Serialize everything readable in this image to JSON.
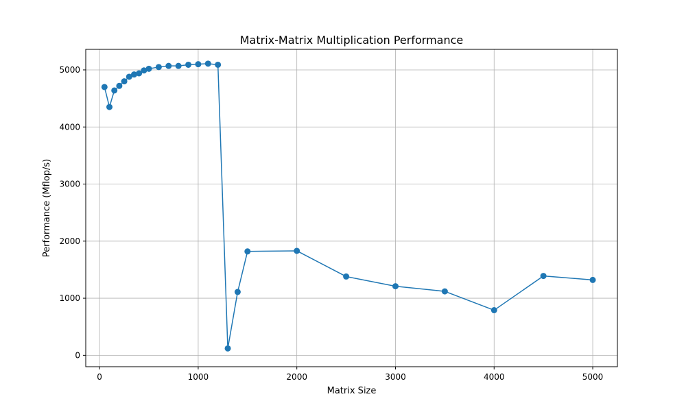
{
  "chart_data": {
    "type": "line",
    "title": "Matrix-Matrix Multiplication Performance",
    "xlabel": "Matrix Size",
    "ylabel": "Performance (Mflop/s)",
    "xlim": [
      -140,
      5250
    ],
    "ylim": [
      -200,
      5360
    ],
    "x_ticks": [
      0,
      1000,
      2000,
      3000,
      4000,
      5000
    ],
    "y_ticks": [
      0,
      1000,
      2000,
      3000,
      4000,
      5000
    ],
    "grid": true,
    "marker": "circle",
    "series": [
      {
        "color": "#1f77b4",
        "x": [
          50,
          100,
          150,
          200,
          250,
          300,
          350,
          400,
          450,
          500,
          600,
          700,
          800,
          900,
          1000,
          1100,
          1200,
          1300,
          1400,
          1500,
          2000,
          2500,
          3000,
          3500,
          4000,
          4500,
          5000
        ],
        "y": [
          4700,
          4350,
          4640,
          4720,
          4800,
          4880,
          4920,
          4940,
          4990,
          5020,
          5050,
          5070,
          5070,
          5090,
          5100,
          5110,
          5090,
          120,
          1110,
          1820,
          1830,
          1380,
          1210,
          1120,
          790,
          1390,
          1320
        ]
      }
    ]
  }
}
